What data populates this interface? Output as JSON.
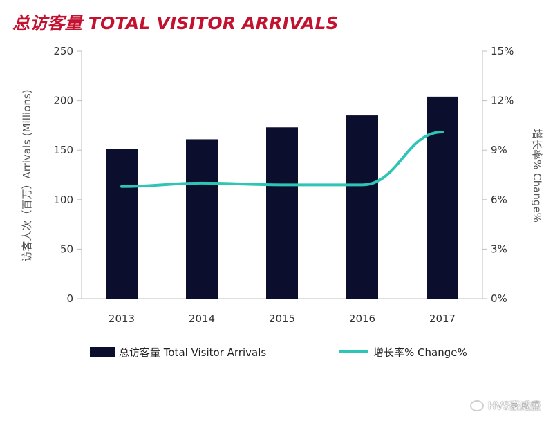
{
  "title": "总访客量 TOTAL VISITOR ARRIVALS",
  "watermark": "HVS豪威盛",
  "colors": {
    "bar": "#0b0f2d",
    "line": "#2ec4b6",
    "title": "#c3122f"
  },
  "chart_data": {
    "type": "bar",
    "categories": [
      "2013",
      "2014",
      "2015",
      "2016",
      "2017"
    ],
    "series": [
      {
        "name": "总访客量 Total Visitor Arrivals",
        "type": "bar",
        "axis": "left",
        "values": [
          151,
          161,
          173,
          185,
          204
        ]
      },
      {
        "name": "增长率% Change%",
        "type": "line",
        "axis": "right",
        "values": [
          6.8,
          7.0,
          6.9,
          6.9,
          10.1
        ]
      }
    ],
    "ylabel": "访客人次（百万）Arrivals (Millions)",
    "y2label": "增长率% Change%",
    "ylim": [
      0,
      250
    ],
    "y2lim": [
      0,
      15
    ],
    "yticks": [
      "0",
      "50",
      "100",
      "150",
      "200",
      "250"
    ],
    "y2ticks": [
      "0%",
      "3%",
      "6%",
      "9%",
      "12%",
      "15%"
    ],
    "grid": false,
    "legend": "bottom"
  }
}
